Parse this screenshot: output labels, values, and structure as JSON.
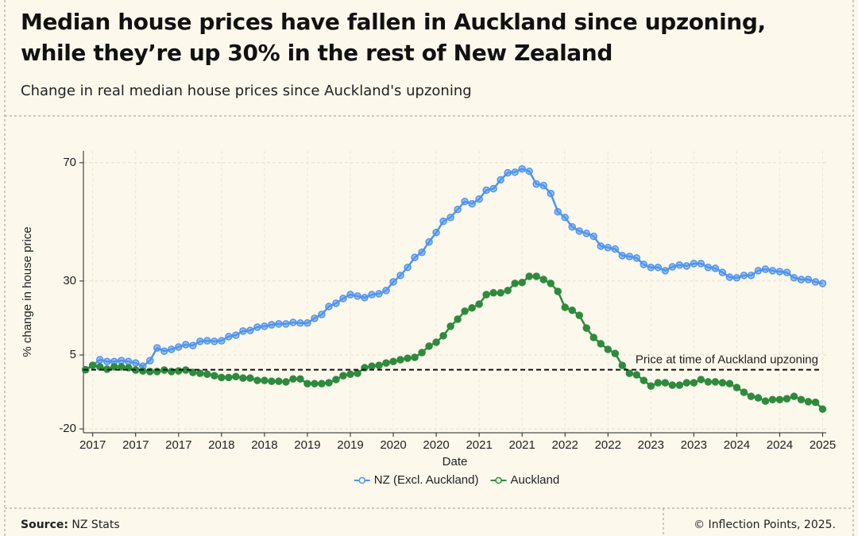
{
  "chart_data": {
    "type": "line",
    "title": "Median house prices have fallen in Auckland since upzoning, while they’re up 30% in the rest of New Zealand",
    "subtitle": "Change in real median house prices since Auckland's upzoning",
    "x_label": "Date",
    "y_label": "% change in house price",
    "x": [
      0,
      1,
      2,
      3,
      4,
      5,
      6,
      7,
      8,
      9,
      10,
      11,
      12,
      13,
      14,
      15,
      16,
      17,
      18,
      19,
      20,
      21,
      22,
      23,
      24,
      25,
      26,
      27,
      28,
      29,
      30,
      31,
      32,
      33,
      34,
      35,
      36,
      37,
      38,
      39,
      40,
      41,
      42,
      43,
      44,
      45,
      46,
      47,
      48,
      49,
      50,
      51,
      52,
      53,
      54,
      55,
      56,
      57,
      58,
      59,
      60,
      61,
      62,
      63,
      64,
      65,
      66,
      67,
      68,
      69,
      70,
      71,
      72,
      73,
      74,
      75,
      76,
      77,
      78,
      79,
      80,
      81,
      82,
      83,
      84,
      85,
      86,
      87,
      88,
      89,
      90,
      91,
      92,
      93,
      94,
      95,
      96,
      97,
      98,
      99,
      100,
      101,
      102,
      103
    ],
    "series": [
      {
        "name": "NZ (Excl. Auckland)",
        "color": "#4f94ef",
        "values": [
          0,
          1.5,
          3.4,
          2.8,
          2.8,
          3.1,
          2.8,
          2.3,
          1.2,
          3.1,
          7.4,
          6.3,
          6.9,
          7.7,
          8.5,
          8.2,
          9.6,
          9.8,
          9.6,
          9.8,
          11.2,
          11.7,
          13.1,
          13.3,
          14.4,
          14.7,
          15.2,
          15.5,
          15.5,
          16.0,
          15.8,
          15.8,
          17.4,
          18.7,
          21.4,
          22.5,
          24.1,
          25.4,
          24.9,
          24.4,
          25.4,
          25.7,
          26.8,
          29.7,
          31.9,
          34.6,
          38.0,
          39.7,
          43.2,
          46.4,
          50.2,
          51.5,
          54.2,
          56.9,
          56.1,
          57.7,
          60.7,
          61.2,
          64.2,
          66.6,
          66.8,
          67.9,
          67.1,
          62.8,
          62.3,
          59.6,
          53.4,
          51.5,
          48.3,
          46.9,
          46.1,
          45.1,
          41.8,
          41.3,
          40.8,
          38.6,
          38.3,
          37.8,
          35.6,
          34.6,
          34.6,
          33.5,
          34.8,
          35.4,
          35.1,
          35.9,
          35.9,
          34.6,
          34.3,
          32.9,
          31.3,
          31.1,
          31.9,
          31.9,
          33.5,
          34.0,
          33.5,
          33.2,
          32.9,
          31.1,
          30.5,
          30.5,
          29.7,
          29.2
        ]
      },
      {
        "name": "Auckland",
        "color": "#2e8b3e",
        "values": [
          0,
          1.5,
          1.0,
          0.2,
          1.0,
          1.0,
          0.7,
          -0.1,
          -0.4,
          -0.6,
          -0.6,
          -0.1,
          -0.6,
          -0.4,
          -0.1,
          -0.9,
          -1.2,
          -1.5,
          -2.0,
          -2.6,
          -2.6,
          -2.3,
          -2.8,
          -2.8,
          -3.6,
          -3.6,
          -3.9,
          -3.9,
          -4.1,
          -3.1,
          -3.1,
          -4.7,
          -4.7,
          -4.7,
          -4.4,
          -3.3,
          -2.0,
          -1.5,
          -1.2,
          0.7,
          1.2,
          1.5,
          2.3,
          2.8,
          3.4,
          3.9,
          4.2,
          5.8,
          8.0,
          9.3,
          11.5,
          14.7,
          17.1,
          19.8,
          20.9,
          22.2,
          25.4,
          26.0,
          26.0,
          26.8,
          29.2,
          29.5,
          31.6,
          31.6,
          30.5,
          29.2,
          26.5,
          21.1,
          20.1,
          18.4,
          14.1,
          10.9,
          8.8,
          6.9,
          5.5,
          1.5,
          -1.2,
          -1.7,
          -3.6,
          -5.5,
          -4.4,
          -4.4,
          -5.2,
          -5.2,
          -4.4,
          -4.4,
          -3.3,
          -4.1,
          -4.1,
          -4.4,
          -4.7,
          -6.0,
          -7.6,
          -9.0,
          -9.5,
          -10.6,
          -10.1,
          -10.1,
          -9.8,
          -9.0,
          -10.1,
          -10.8,
          -11.0,
          -13.3
        ]
      }
    ],
    "xlim": [
      -0.3,
      103.5
    ],
    "xticks": [
      {
        "value": 1,
        "label": "2017"
      },
      {
        "value": 7,
        "label": "2017"
      },
      {
        "value": 13,
        "label": "2017"
      },
      {
        "value": 19,
        "label": "2018"
      },
      {
        "value": 25,
        "label": "2018"
      },
      {
        "value": 31,
        "label": "2019"
      },
      {
        "value": 37,
        "label": "2019"
      },
      {
        "value": 43,
        "label": "2020"
      },
      {
        "value": 49,
        "label": "2020"
      },
      {
        "value": 55,
        "label": "2021"
      },
      {
        "value": 61,
        "label": "2021"
      },
      {
        "value": 67,
        "label": "2022"
      },
      {
        "value": 73,
        "label": "2022"
      },
      {
        "value": 79,
        "label": "2023"
      },
      {
        "value": 85,
        "label": "2023"
      },
      {
        "value": 91,
        "label": "2024"
      },
      {
        "value": 97,
        "label": "2024"
      },
      {
        "value": 103,
        "label": "2025"
      }
    ],
    "ylim": [
      -21.3,
      74
    ],
    "yticks": [
      -20,
      5,
      30,
      70
    ],
    "reference_line": {
      "value": 0,
      "label": "Price at time of Auckland upzoning"
    },
    "grid": true,
    "legend": "bottom"
  },
  "footer": {
    "source_label": "Source:",
    "source": "NZ Stats",
    "credit": "© Inflection Points, 2025."
  }
}
